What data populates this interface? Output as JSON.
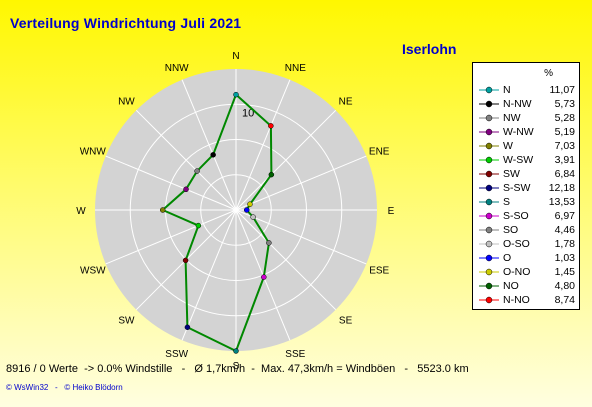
{
  "title": "Verteilung Windrichtung    Juli 2021",
  "location": "Iserlohn",
  "footer": {
    "stats": "8916 / 0 Werte  -> 0.0% Windstille   -   Ø 1,7km/h  -  Max. 47,3km/h = Windböen   -   5523.0 km",
    "credit": "© WsWin32   -   © Heiko Blödorn"
  },
  "chart_data": {
    "type": "radar",
    "directions": [
      "N",
      "NNE",
      "NE",
      "ENE",
      "E",
      "ESE",
      "SE",
      "SSE",
      "S",
      "SSW",
      "SW",
      "WSW",
      "W",
      "WNW",
      "NW",
      "NNW"
    ],
    "ring_label": "10",
    "rmax": 13.53,
    "line_color": "#008800",
    "values": [
      11.07,
      8.74,
      4.8,
      1.45,
      1.03,
      1.78,
      4.46,
      6.97,
      13.53,
      12.18,
      6.84,
      3.91,
      7.03,
      5.19,
      5.28,
      5.73
    ],
    "legend_unit": "%",
    "legend": [
      {
        "name": "N",
        "value": "11,07",
        "color": "#00a0a0"
      },
      {
        "name": "N-NW",
        "value": "5,73",
        "color": "#000000"
      },
      {
        "name": "NW",
        "value": "5,28",
        "color": "#808080"
      },
      {
        "name": "W-NW",
        "value": "5,19",
        "color": "#800080"
      },
      {
        "name": "W",
        "value": "7,03",
        "color": "#808000"
      },
      {
        "name": "W-SW",
        "value": "3,91",
        "color": "#00cc00"
      },
      {
        "name": "SW",
        "value": "6,84",
        "color": "#800000"
      },
      {
        "name": "S-SW",
        "value": "12,18",
        "color": "#000080"
      },
      {
        "name": "S",
        "value": "13,53",
        "color": "#008080"
      },
      {
        "name": "S-SO",
        "value": "6,97",
        "color": "#cc00cc"
      },
      {
        "name": "SO",
        "value": "4,46",
        "color": "#808080"
      },
      {
        "name": "O-SO",
        "value": "1,78",
        "color": "#c0c0c0"
      },
      {
        "name": "O",
        "value": "1,03",
        "color": "#0000ff"
      },
      {
        "name": "O-NO",
        "value": "1,45",
        "color": "#cccc00"
      },
      {
        "name": "NO",
        "value": "4,80",
        "color": "#006000"
      },
      {
        "name": "N-NO",
        "value": "8,74",
        "color": "#ff0000"
      }
    ]
  }
}
